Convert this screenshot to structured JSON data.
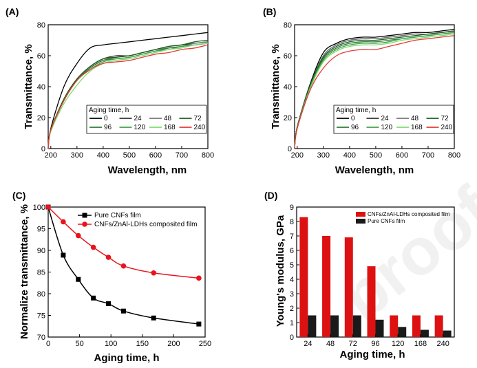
{
  "watermark": "proof",
  "chart_data": [
    {
      "panel": "(A)",
      "type": "line",
      "xlabel": "Wavelength, nm",
      "ylabel": "Transmittance, %",
      "xlim": [
        190,
        800
      ],
      "ylim": [
        0,
        80
      ],
      "xticks": [
        200,
        300,
        400,
        500,
        600,
        700,
        800
      ],
      "yticks": [
        0,
        20,
        40,
        60,
        80
      ],
      "legend_title": "Aging time, h",
      "legend_position": "center-right",
      "x": [
        190,
        200,
        250,
        300,
        350,
        400,
        450,
        500,
        550,
        600,
        650,
        700,
        750,
        800
      ],
      "series": [
        {
          "name": "0",
          "color": "#000000",
          "values": [
            0,
            13,
            40,
            55,
            65,
            67,
            68,
            69,
            70,
            71,
            72,
            73,
            74,
            75
          ]
        },
        {
          "name": "24",
          "color": "#333333",
          "values": [
            0,
            12,
            32,
            45,
            53,
            58,
            60,
            60,
            62,
            64,
            66,
            67,
            68,
            69
          ]
        },
        {
          "name": "48",
          "color": "#777777",
          "values": [
            0,
            12,
            32,
            45,
            52,
            57,
            59,
            60,
            62,
            64,
            65,
            66,
            68,
            69
          ]
        },
        {
          "name": "72",
          "color": "#1b5e20",
          "values": [
            0,
            12,
            32,
            45,
            53,
            58,
            59,
            60,
            62,
            64,
            66,
            67,
            69,
            70
          ]
        },
        {
          "name": "96",
          "color": "#2e7d32",
          "values": [
            0,
            12,
            31,
            44,
            52,
            57,
            58,
            59,
            61,
            63,
            65,
            66,
            67,
            68
          ]
        },
        {
          "name": "120",
          "color": "#43a047",
          "values": [
            0,
            12,
            31,
            44,
            51,
            56,
            58,
            59,
            61,
            63,
            64,
            66,
            67,
            68
          ]
        },
        {
          "name": "168",
          "color": "#7ddc6f",
          "values": [
            0,
            11,
            29,
            41,
            50,
            55,
            57,
            58,
            60,
            62,
            64,
            65,
            67,
            68
          ]
        },
        {
          "name": "240",
          "color": "#e53935",
          "values": [
            0,
            12,
            31,
            44,
            51,
            55,
            56,
            57,
            59,
            61,
            62,
            64,
            65,
            67
          ]
        }
      ]
    },
    {
      "panel": "(B)",
      "type": "line",
      "xlabel": "Wavelength, nm",
      "ylabel": "Transmittance, %",
      "xlim": [
        190,
        800
      ],
      "ylim": [
        0,
        80
      ],
      "xticks": [
        200,
        300,
        400,
        500,
        600,
        700,
        800
      ],
      "yticks": [
        0,
        20,
        40,
        60,
        80
      ],
      "legend_title": "Aging time, h",
      "legend_position": "center-right",
      "x": [
        190,
        200,
        250,
        300,
        350,
        400,
        450,
        500,
        550,
        600,
        650,
        700,
        750,
        800
      ],
      "series": [
        {
          "name": "0",
          "color": "#000000",
          "values": [
            0,
            14,
            42,
            62,
            68,
            71,
            72,
            72,
            73,
            74,
            75,
            75,
            76,
            77
          ]
        },
        {
          "name": "24",
          "color": "#333333",
          "values": [
            0,
            14,
            41,
            60,
            67,
            70,
            71,
            71,
            72,
            73,
            74,
            74,
            75,
            76
          ]
        },
        {
          "name": "48",
          "color": "#777777",
          "values": [
            0,
            14,
            41,
            60,
            67,
            70,
            71,
            71,
            72,
            73,
            74,
            74,
            75,
            76
          ]
        },
        {
          "name": "72",
          "color": "#1b5e20",
          "values": [
            0,
            14,
            41,
            59,
            66,
            69,
            70,
            70,
            71,
            72,
            73,
            74,
            75,
            76
          ]
        },
        {
          "name": "96",
          "color": "#2e7d32",
          "values": [
            0,
            14,
            40,
            58,
            65,
            68,
            69,
            69,
            70,
            71,
            72,
            73,
            74,
            75
          ]
        },
        {
          "name": "120",
          "color": "#43a047",
          "values": [
            0,
            13,
            40,
            57,
            64,
            67,
            68,
            68,
            69,
            71,
            72,
            73,
            74,
            75
          ]
        },
        {
          "name": "168",
          "color": "#7ddc6f",
          "values": [
            0,
            13,
            39,
            56,
            63,
            66,
            67,
            67,
            68,
            70,
            71,
            72,
            73,
            74
          ]
        },
        {
          "name": "240",
          "color": "#e53935",
          "values": [
            0,
            13,
            38,
            52,
            60,
            63,
            64,
            64,
            66,
            68,
            70,
            71,
            72,
            73
          ]
        }
      ]
    },
    {
      "panel": "(C)",
      "type": "line",
      "xlabel": "Aging time, h",
      "ylabel": "Normalize transmittance, %",
      "xlim": [
        0,
        250
      ],
      "ylim": [
        70,
        100
      ],
      "xticks": [
        0,
        50,
        100,
        150,
        200,
        250
      ],
      "yticks": [
        70,
        75,
        80,
        85,
        90,
        95,
        100
      ],
      "legend_position": "top-right",
      "x": [
        0,
        24,
        48,
        72,
        96,
        120,
        168,
        240
      ],
      "series": [
        {
          "name": "Pure CNFs film",
          "color": "#000000",
          "marker": "square",
          "values": [
            100,
            88.9,
            83.3,
            79.0,
            77.7,
            76.0,
            74.4,
            73.0
          ]
        },
        {
          "name": "CNFs/ZnAl-LDHs composited film",
          "color": "#e8141c",
          "marker": "circle",
          "values": [
            100,
            96.6,
            93.4,
            90.7,
            88.4,
            86.4,
            84.8,
            83.6
          ]
        }
      ]
    },
    {
      "panel": "(D)",
      "type": "bar",
      "xlabel": "Aging time, h",
      "ylabel": "Young's modulus, GPa",
      "ylim": [
        0,
        9
      ],
      "yticks": [
        0,
        1,
        2,
        3,
        4,
        5,
        6,
        7,
        8,
        9
      ],
      "legend_position": "top-right",
      "categories": [
        "24",
        "48",
        "72",
        "96",
        "120",
        "168",
        "240"
      ],
      "series": [
        {
          "name": "CNFs/ZnAl-LDHs composited film",
          "color": "#dd1111",
          "values": [
            8.3,
            7.0,
            6.9,
            4.9,
            1.5,
            1.5,
            1.5
          ]
        },
        {
          "name": "Pure CNFs film",
          "color": "#1a1a1a",
          "values": [
            1.5,
            1.5,
            1.5,
            1.2,
            0.7,
            0.5,
            0.45
          ]
        }
      ]
    }
  ]
}
